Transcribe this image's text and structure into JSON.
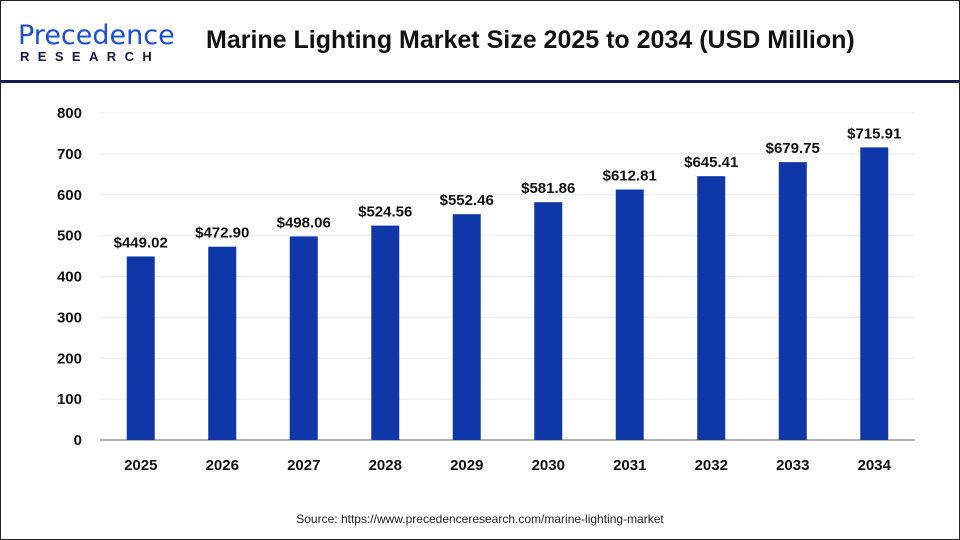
{
  "header": {
    "logo_text": "Precedence",
    "logo_subtext": "RESEARCH",
    "title": "Marine Lighting Market Size 2025 to 2034 (USD Million)"
  },
  "source": "Source: https://www.precedenceresearch.com/marine-lighting-market",
  "chart_data": {
    "type": "bar",
    "title": "Marine Lighting Market Size 2025 to 2034 (USD Million)",
    "categories": [
      "2025",
      "2026",
      "2027",
      "2028",
      "2029",
      "2030",
      "2031",
      "2032",
      "2033",
      "2034"
    ],
    "values": [
      449.02,
      472.9,
      498.06,
      524.56,
      552.46,
      581.86,
      612.81,
      645.41,
      679.75,
      715.91
    ],
    "data_labels": [
      "$449.02",
      "$472.90",
      "$498.06",
      "$524.56",
      "$552.46",
      "$581.86",
      "$612.81",
      "$645.41",
      "$679.75",
      "$715.91"
    ],
    "ylim": [
      0,
      800
    ],
    "yticks": [
      0,
      100,
      200,
      300,
      400,
      500,
      600,
      700,
      800
    ],
    "grid": true,
    "bar_color": "#0f37a8"
  }
}
